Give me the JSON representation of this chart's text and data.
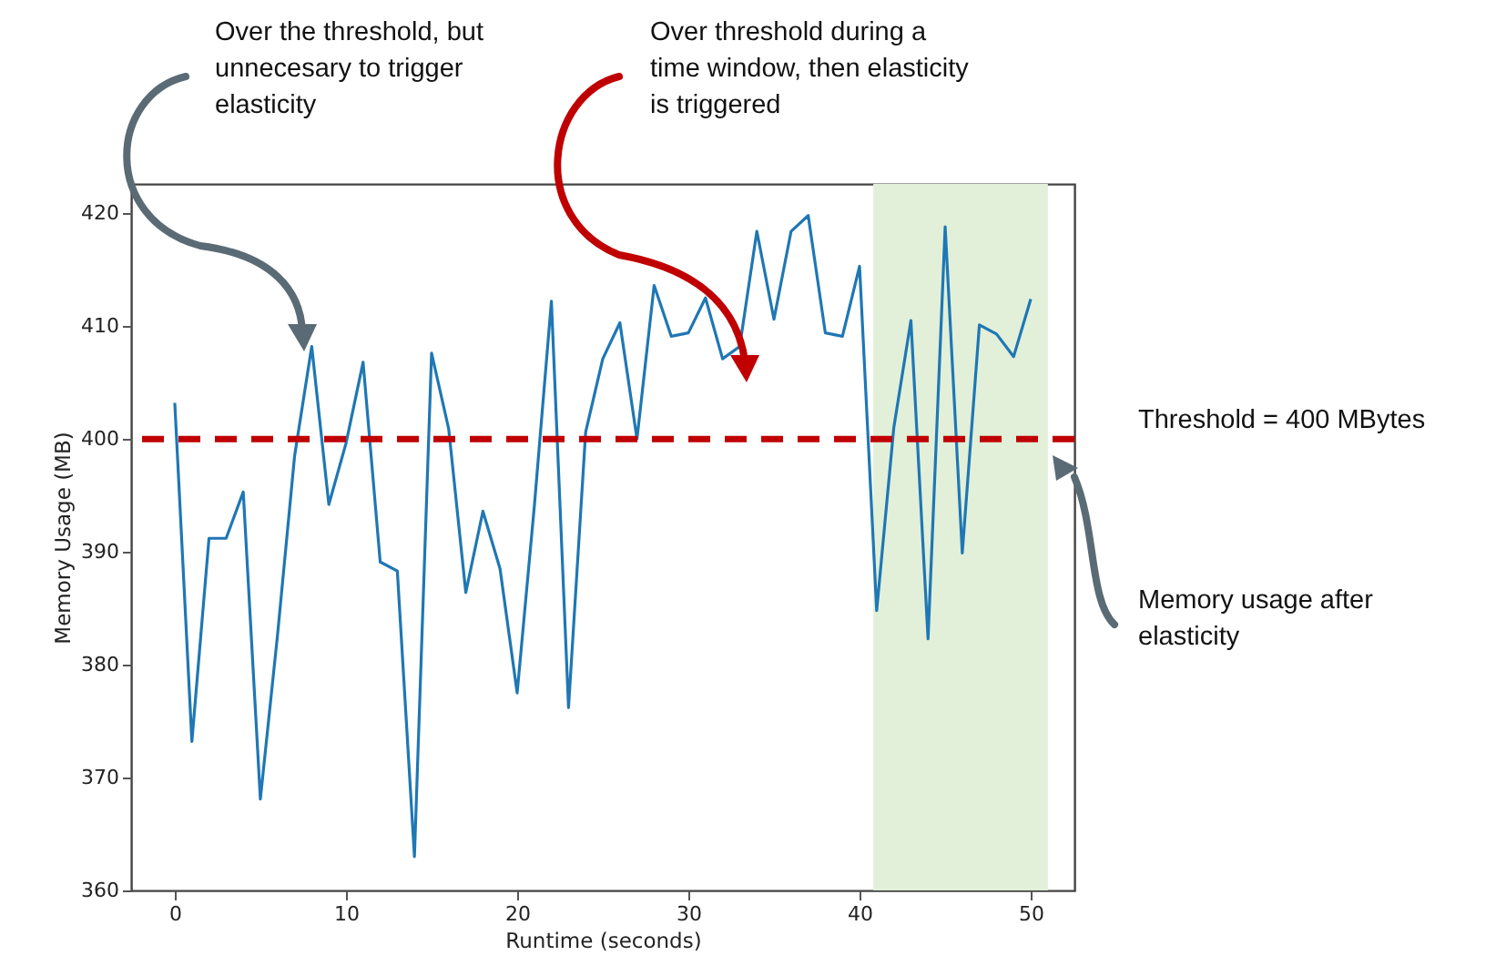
{
  "chart_data": {
    "type": "line",
    "xlabel": "Runtime (seconds)",
    "ylabel": "Memory Usage (MB)",
    "x": [
      0,
      1,
      2,
      3,
      4,
      5,
      6,
      7,
      8,
      9,
      10,
      11,
      12,
      13,
      14,
      15,
      16,
      17,
      18,
      19,
      20,
      21,
      22,
      23,
      24,
      25,
      26,
      27,
      28,
      29,
      30,
      31,
      32,
      33,
      34,
      35,
      36,
      37,
      38,
      39,
      40,
      41,
      42,
      43,
      44,
      45,
      46,
      47,
      48,
      49,
      50
    ],
    "series": [
      {
        "color": "#1f77b4",
        "values": [
          403.2,
          373.2,
          391.2,
          391.2,
          395.3,
          368.1,
          382.6,
          398.5,
          408.2,
          394.2,
          399.6,
          406.8,
          389.1,
          388.3,
          363.0,
          407.6,
          400.9,
          386.4,
          393.6,
          388.5,
          377.5,
          394,
          412.2,
          376.2,
          400.6,
          407.1,
          410.3,
          400,
          413.6,
          409.1,
          409.4,
          412.5,
          407.1,
          408.2,
          418.4,
          410.6,
          418.4,
          419.8,
          409.4,
          409.1,
          415.3,
          384.8,
          401,
          410.5,
          382.3,
          418.8,
          389.9,
          410.1,
          409.3,
          407.3,
          412.4
        ]
      }
    ],
    "xlim": [
      -2.55,
      52.55
    ],
    "ylim": [
      360,
      422.6
    ],
    "xticks": [
      0,
      10,
      20,
      30,
      40,
      50
    ],
    "yticks": [
      360,
      370,
      380,
      390,
      400,
      410,
      420
    ],
    "grid": false,
    "ref_lines": [
      {
        "axis": "y",
        "value": 400,
        "label": "Threshold = 400 MBytes",
        "color": "#c00000",
        "line_style": "dashed"
      }
    ],
    "bands": [
      {
        "axis": "x",
        "from": 40.8,
        "to": 51,
        "color": "#e2f0d9"
      }
    ],
    "annotations": [
      "Over the threshold, but unnecesary to trigger elasticity",
      "Over threshold during a time window, then elasticity is triggered",
      "Memory usage after elasticity"
    ]
  }
}
